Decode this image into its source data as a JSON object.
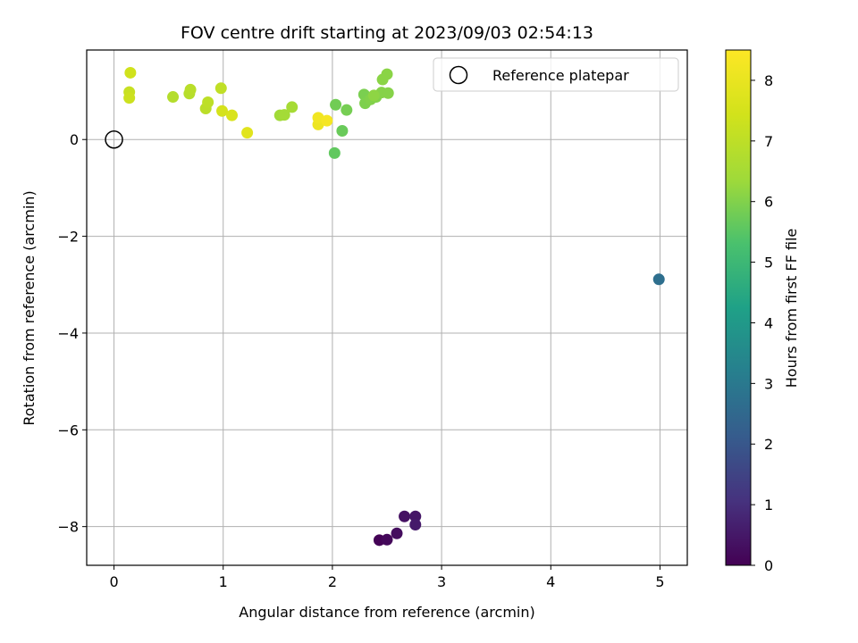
{
  "chart_data": {
    "type": "scatter",
    "title": "FOV centre drift starting at 2023/09/03 02:54:13",
    "xlabel": "Angular distance from reference (arcmin)",
    "ylabel": "Rotation from reference (arcmin)",
    "xlim": [
      -0.25,
      5.25
    ],
    "ylim": [
      -8.8,
      1.85
    ],
    "xticks": [
      0,
      1,
      2,
      3,
      4,
      5
    ],
    "xtick_labels": [
      "0",
      "1",
      "2",
      "3",
      "4",
      "5"
    ],
    "yticks": [
      0,
      -2,
      -4,
      -6,
      -8
    ],
    "ytick_labels": [
      "0",
      "−2",
      "−4",
      "−6",
      "−8"
    ],
    "grid": true,
    "legend": {
      "position": "top-right",
      "entries": [
        "Reference platepar"
      ]
    },
    "reference_point": {
      "name": "Reference platepar",
      "x": 0,
      "y": 0
    },
    "colorbar": {
      "label": "Hours from first FF file",
      "colormap": "viridis",
      "range": [
        0,
        8.5
      ],
      "ticks": [
        0,
        1,
        2,
        3,
        4,
        5,
        6,
        7,
        8
      ],
      "tick_labels": [
        "0",
        "1",
        "2",
        "3",
        "4",
        "5",
        "6",
        "7",
        "8"
      ]
    },
    "points": [
      {
        "x": 2.43,
        "y": -8.28,
        "hours": 0.05
      },
      {
        "x": 2.5,
        "y": -8.27,
        "hours": 0.15
      },
      {
        "x": 2.59,
        "y": -8.14,
        "hours": 0.25
      },
      {
        "x": 2.66,
        "y": -7.79,
        "hours": 0.35
      },
      {
        "x": 2.76,
        "y": -7.79,
        "hours": 0.45
      },
      {
        "x": 2.76,
        "y": -7.96,
        "hours": 0.55
      },
      {
        "x": 4.99,
        "y": -2.89,
        "hours": 2.7
      },
      {
        "x": 2.02,
        "y": -0.28,
        "hours": 5.6
      },
      {
        "x": 2.09,
        "y": 0.18,
        "hours": 5.7
      },
      {
        "x": 2.03,
        "y": 0.72,
        "hours": 5.8
      },
      {
        "x": 2.13,
        "y": 0.61,
        "hours": 5.85
      },
      {
        "x": 2.29,
        "y": 0.93,
        "hours": 5.9
      },
      {
        "x": 2.3,
        "y": 0.75,
        "hours": 5.95
      },
      {
        "x": 2.35,
        "y": 0.83,
        "hours": 6.0
      },
      {
        "x": 2.4,
        "y": 0.88,
        "hours": 6.0
      },
      {
        "x": 2.45,
        "y": 0.97,
        "hours": 6.05
      },
      {
        "x": 2.51,
        "y": 0.96,
        "hours": 6.05
      },
      {
        "x": 2.46,
        "y": 1.24,
        "hours": 6.1
      },
      {
        "x": 2.5,
        "y": 1.35,
        "hours": 6.1
      },
      {
        "x": 2.38,
        "y": 0.91,
        "hours": 6.15
      },
      {
        "x": 1.52,
        "y": 0.5,
        "hours": 6.4
      },
      {
        "x": 1.56,
        "y": 0.51,
        "hours": 6.45
      },
      {
        "x": 1.63,
        "y": 0.67,
        "hours": 6.5
      },
      {
        "x": 0.54,
        "y": 0.88,
        "hours": 6.8
      },
      {
        "x": 0.69,
        "y": 0.95,
        "hours": 6.85
      },
      {
        "x": 0.7,
        "y": 1.03,
        "hours": 6.9
      },
      {
        "x": 0.84,
        "y": 0.64,
        "hours": 6.95
      },
      {
        "x": 0.86,
        "y": 0.77,
        "hours": 7.0
      },
      {
        "x": 0.98,
        "y": 1.06,
        "hours": 7.05
      },
      {
        "x": 0.14,
        "y": 0.98,
        "hours": 7.2
      },
      {
        "x": 0.14,
        "y": 0.86,
        "hours": 7.3
      },
      {
        "x": 0.15,
        "y": 1.38,
        "hours": 7.4
      },
      {
        "x": 0.99,
        "y": 0.59,
        "hours": 7.5
      },
      {
        "x": 1.08,
        "y": 0.5,
        "hours": 7.6
      },
      {
        "x": 1.22,
        "y": 0.14,
        "hours": 7.8
      },
      {
        "x": 1.87,
        "y": 0.31,
        "hours": 8.1
      },
      {
        "x": 1.87,
        "y": 0.45,
        "hours": 8.2
      },
      {
        "x": 1.95,
        "y": 0.39,
        "hours": 8.3
      }
    ]
  }
}
